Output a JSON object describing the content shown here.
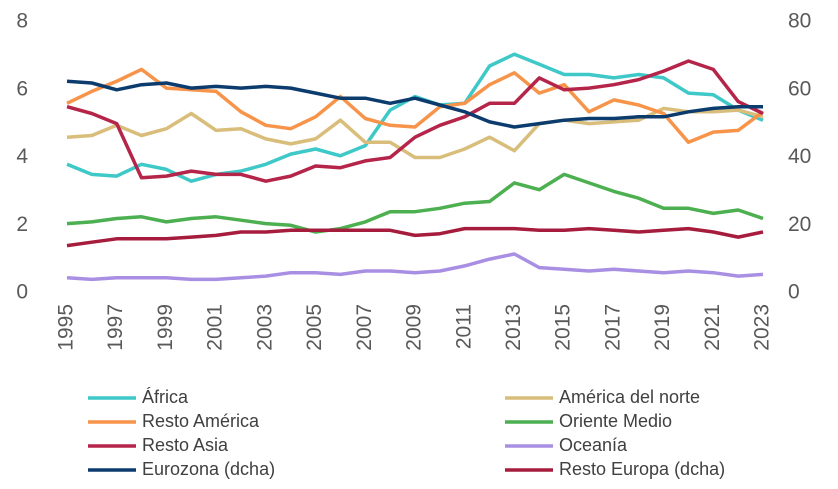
{
  "chart_data": {
    "type": "line",
    "x": [
      1995,
      1996,
      1997,
      1998,
      1999,
      2000,
      2001,
      2002,
      2003,
      2004,
      2005,
      2006,
      2007,
      2008,
      2009,
      2010,
      2011,
      2012,
      2013,
      2014,
      2015,
      2016,
      2017,
      2018,
      2019,
      2020,
      2021,
      2022,
      2023
    ],
    "xlim": [
      1994.8,
      2023.2
    ],
    "xticks": [
      1995,
      1997,
      1999,
      2001,
      2003,
      2005,
      2007,
      2009,
      2011,
      2013,
      2015,
      2017,
      2019,
      2021,
      2023
    ],
    "ylim": [
      0,
      8
    ],
    "yticks": [
      0,
      2,
      4,
      6,
      8
    ],
    "y2lim": [
      0,
      80
    ],
    "y2ticks": [
      0,
      20,
      40,
      60,
      80
    ],
    "legend": "bottom",
    "series": [
      {
        "name": "África",
        "color": "#3ec8c8",
        "values": [
          3.8,
          3.5,
          3.45,
          3.8,
          3.65,
          3.3,
          3.5,
          3.6,
          3.8,
          4.1,
          4.25,
          4.05,
          4.35,
          5.4,
          5.8,
          5.55,
          5.6,
          6.7,
          7.05,
          6.75,
          6.45,
          6.45,
          6.35,
          6.45,
          6.35,
          5.9,
          5.85,
          5.4,
          5.1
        ]
      },
      {
        "name": "América del norte",
        "color": "#d9bd7a",
        "values": [
          4.6,
          4.65,
          4.95,
          4.65,
          4.85,
          5.3,
          4.8,
          4.85,
          4.55,
          4.4,
          4.55,
          5.1,
          4.45,
          4.45,
          4.0,
          4.0,
          4.25,
          4.6,
          4.2,
          5.0,
          5.1,
          5.0,
          5.05,
          5.1,
          5.45,
          5.35,
          5.35,
          5.4,
          5.2
        ]
      },
      {
        "name": "Resto América",
        "color": "#f7944a",
        "values": [
          5.6,
          5.95,
          6.25,
          6.6,
          6.05,
          6.0,
          5.95,
          5.35,
          4.95,
          4.85,
          5.2,
          5.8,
          5.15,
          4.95,
          4.9,
          5.5,
          5.6,
          6.15,
          6.5,
          5.9,
          6.15,
          5.35,
          5.7,
          5.55,
          5.3,
          4.45,
          4.75,
          4.8,
          5.35
        ]
      },
      {
        "name": "Oriente Medio",
        "color": "#4caf50",
        "values": [
          2.05,
          2.1,
          2.2,
          2.25,
          2.1,
          2.2,
          2.25,
          2.15,
          2.05,
          2.0,
          1.8,
          1.9,
          2.1,
          2.4,
          2.4,
          2.5,
          2.65,
          2.7,
          3.25,
          3.05,
          3.5,
          3.25,
          3.0,
          2.8,
          2.5,
          2.5,
          2.35,
          2.45,
          2.2
        ]
      },
      {
        "name": "Resto Asia",
        "color": "#b5254a",
        "values": [
          5.5,
          5.3,
          5.0,
          3.4,
          3.45,
          3.6,
          3.5,
          3.5,
          3.3,
          3.45,
          3.75,
          3.7,
          3.9,
          4.0,
          4.6,
          4.95,
          5.2,
          5.6,
          5.6,
          6.35,
          6.0,
          6.05,
          6.15,
          6.3,
          6.55,
          6.85,
          6.6,
          5.65,
          5.3
        ]
      },
      {
        "name": "Oceanía",
        "color": "#a98fe3",
        "values": [
          0.45,
          0.4,
          0.45,
          0.45,
          0.45,
          0.4,
          0.4,
          0.45,
          0.5,
          0.6,
          0.6,
          0.55,
          0.65,
          0.65,
          0.6,
          0.65,
          0.8,
          1.0,
          1.15,
          0.75,
          0.7,
          0.65,
          0.7,
          0.65,
          0.6,
          0.65,
          0.6,
          0.5,
          0.55
        ]
      },
      {
        "name": "Eurozona (dcha)",
        "color": "#0c3c6e",
        "axis": "y2",
        "values": [
          62.5,
          62,
          60,
          61.5,
          62,
          60.5,
          61,
          60.5,
          61,
          60.5,
          59,
          57.5,
          57.5,
          56,
          57.5,
          55.5,
          53.5,
          50.5,
          49,
          50,
          51,
          51.5,
          51.5,
          52,
          52,
          53.5,
          54.5,
          55,
          55
        ]
      },
      {
        "name": "Resto Europa (dcha)",
        "color": "#a51c3c",
        "axis": "y2",
        "values": [
          14,
          15,
          16,
          16,
          16,
          16.5,
          17,
          18,
          18,
          18.5,
          18.5,
          18.5,
          18.5,
          18.5,
          17,
          17.5,
          19,
          19,
          19,
          18.5,
          18.5,
          19,
          18.5,
          18,
          18.5,
          19,
          18,
          16.5,
          18
        ]
      }
    ]
  }
}
